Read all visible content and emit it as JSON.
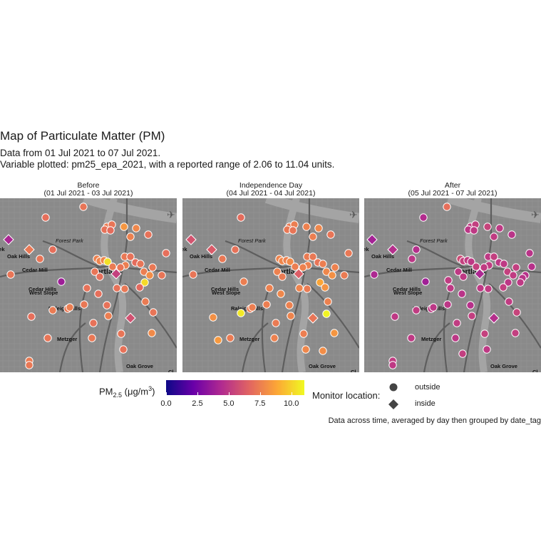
{
  "title": "Map of Particulate Matter (PM)",
  "subtitle_line1": "Data from 01 Jul 2021 to 07 Jul 2021.",
  "subtitle_line2": "Variable plotted: pm25_epa_2021, with a reported range of 2.06 to 11.04 units.",
  "caption": "Data across time, averaged by day then grouped by date_tag",
  "color_legend": {
    "title_main": "PM",
    "title_sub": "2.5",
    "title_unit_pre": " (μg/m",
    "title_unit_sup": "3",
    "title_unit_post": ")",
    "ticks": [
      "0.0",
      "2.5",
      "5.0",
      "7.5",
      "10.0"
    ],
    "tick_values": [
      0,
      2.5,
      5,
      7.5,
      10
    ],
    "range": [
      0,
      11.04
    ],
    "palette": [
      "#0d0887",
      "#6a00a8",
      "#b12a90",
      "#e16462",
      "#fca636",
      "#f0f921"
    ]
  },
  "shape_legend": {
    "title": "Monitor location:",
    "items": [
      {
        "label": "outside",
        "shape": "circle"
      },
      {
        "label": "inside",
        "shape": "diamond"
      }
    ]
  },
  "map_labels": [
    {
      "text": "Forest Park",
      "style": "italic"
    },
    {
      "text": "Oak Hills",
      "style": "bold"
    },
    {
      "text": "Cedar Mill",
      "style": "bold"
    },
    {
      "text": "Cedar Hills",
      "style": "bold"
    },
    {
      "text": "West Slope",
      "style": "bold"
    },
    {
      "text": "Raleigh Hills",
      "style": "bold"
    },
    {
      "text": "Metzger",
      "style": "bold"
    },
    {
      "text": "Portland",
      "style": "bold-large"
    },
    {
      "text": "Oak Grove",
      "style": "bold"
    },
    {
      "text": "eek",
      "style": "bold"
    },
    {
      "text": "Cl",
      "style": "bold"
    }
  ],
  "chart_data": {
    "type": "scatter",
    "facets": [
      {
        "label": "Before",
        "date_range": "(01 Jul 2021 - 03 Jul 2021)",
        "points": [
          [
            117,
            12,
            7.2,
            "o"
          ],
          [
            64,
            27,
            7.0,
            "o"
          ],
          [
            12,
            58,
            4.2,
            "d"
          ],
          [
            41,
            72,
            7.3,
            "d"
          ],
          [
            150,
            40,
            7.4,
            "o"
          ],
          [
            147,
            44,
            7.1,
            "o"
          ],
          [
            157,
            37,
            7.2,
            "o"
          ],
          [
            155,
            45,
            6.9,
            "o"
          ],
          [
            174,
            40,
            8.3,
            "o"
          ],
          [
            191,
            42,
            7.8,
            "o"
          ],
          [
            208,
            51,
            7.1,
            "o"
          ],
          [
            183,
            54,
            7.6,
            "o"
          ],
          [
            74,
            72,
            7.0,
            "o"
          ],
          [
            56,
            85,
            7.2,
            "o"
          ],
          [
            136,
            85,
            7.6,
            "o"
          ],
          [
            140,
            88,
            7.7,
            "o"
          ],
          [
            146,
            87,
            7.8,
            "o"
          ],
          [
            151,
            89,
            10.4,
            "o"
          ],
          [
            158,
            96,
            7.4,
            "o"
          ],
          [
            175,
            82,
            7.3,
            "o"
          ],
          [
            183,
            82,
            7.1,
            "o"
          ],
          [
            176,
            94,
            7.5,
            "o"
          ],
          [
            190,
            90,
            6.9,
            "o"
          ],
          [
            197,
            92,
            7.2,
            "o"
          ],
          [
            214,
            97,
            7.3,
            "o"
          ],
          [
            233,
            77,
            7.0,
            "o"
          ],
          [
            15,
            107,
            7.2,
            "o"
          ],
          [
            86,
            117,
            3.8,
            "o"
          ],
          [
            133,
            103,
            7.2,
            "o"
          ],
          [
            163,
            106,
            5.3,
            "d"
          ],
          [
            202,
            103,
            7.5,
            "o"
          ],
          [
            210,
            108,
            8.0,
            "o"
          ],
          [
            227,
            108,
            7.2,
            "o"
          ],
          [
            203,
            118,
            10.2,
            "o"
          ],
          [
            196,
            125,
            6.8,
            "o"
          ],
          [
            164,
            126,
            7.1,
            "o"
          ],
          [
            175,
            127,
            7.3,
            "o"
          ],
          [
            122,
            126,
            7.1,
            "o"
          ],
          [
            138,
            134,
            7.0,
            "o"
          ],
          [
            74,
            157,
            7.4,
            "o"
          ],
          [
            95,
            155,
            7.3,
            "o"
          ],
          [
            98,
            153,
            7.5,
            "o"
          ],
          [
            150,
            150,
            7.1,
            "o"
          ],
          [
            183,
            168,
            5.9,
            "d"
          ],
          [
            215,
            160,
            7.2,
            "o"
          ],
          [
            44,
            166,
            7.0,
            "o"
          ],
          [
            131,
            175,
            7.1,
            "o"
          ],
          [
            152,
            165,
            7.5,
            "o"
          ],
          [
            118,
            149,
            7.3,
            "o"
          ],
          [
            67,
            196,
            7.2,
            "o"
          ],
          [
            129,
            196,
            7.3,
            "o"
          ],
          [
            213,
            189,
            7.9,
            "o"
          ],
          [
            173,
            212,
            7.1,
            "o"
          ],
          [
            41,
            228,
            7.4,
            "o"
          ],
          [
            41,
            234,
            7.3,
            "o"
          ],
          [
            170,
            190,
            7.2,
            "o"
          ],
          [
            204,
            145,
            7.4,
            "o"
          ],
          [
            140,
            110,
            7.0,
            "o"
          ],
          [
            169,
            97,
            7.2,
            "o"
          ]
        ]
      },
      {
        "label": "Independence Day",
        "date_range": "(04 Jul 2021 - 04 Jul 2021)",
        "points": [
          [
            338,
            27,
            6.9,
            "o"
          ],
          [
            268,
            58,
            6.0,
            "d"
          ],
          [
            297,
            72,
            6.3,
            "d"
          ],
          [
            406,
            40,
            7.4,
            "o"
          ],
          [
            403,
            44,
            7.3,
            "o"
          ],
          [
            413,
            37,
            7.5,
            "o"
          ],
          [
            411,
            45,
            7.2,
            "o"
          ],
          [
            430,
            40,
            7.6,
            "o"
          ],
          [
            447,
            42,
            7.8,
            "o"
          ],
          [
            464,
            51,
            7.2,
            "o"
          ],
          [
            439,
            54,
            7.5,
            "o"
          ],
          [
            330,
            72,
            7.1,
            "o"
          ],
          [
            312,
            85,
            7.3,
            "o"
          ],
          [
            392,
            85,
            7.7,
            "o"
          ],
          [
            396,
            88,
            7.8,
            "o"
          ],
          [
            402,
            87,
            7.6,
            "o"
          ],
          [
            407,
            89,
            7.9,
            "o"
          ],
          [
            414,
            96,
            7.5,
            "o"
          ],
          [
            431,
            82,
            7.4,
            "o"
          ],
          [
            439,
            82,
            7.3,
            "o"
          ],
          [
            432,
            94,
            7.6,
            "o"
          ],
          [
            446,
            90,
            7.2,
            "o"
          ],
          [
            453,
            92,
            7.5,
            "o"
          ],
          [
            470,
            97,
            7.6,
            "o"
          ],
          [
            489,
            77,
            7.3,
            "o"
          ],
          [
            271,
            107,
            7.2,
            "o"
          ],
          [
            342,
            117,
            7.5,
            "o"
          ],
          [
            389,
            103,
            7.6,
            "o"
          ],
          [
            419,
            106,
            6.4,
            "d"
          ],
          [
            458,
            103,
            7.8,
            "o"
          ],
          [
            466,
            108,
            8.1,
            "o"
          ],
          [
            483,
            108,
            7.4,
            "o"
          ],
          [
            449,
            118,
            8.8,
            "o"
          ],
          [
            456,
            125,
            8.2,
            "o"
          ],
          [
            420,
            126,
            7.7,
            "o"
          ],
          [
            431,
            127,
            7.4,
            "o"
          ],
          [
            378,
            126,
            7.6,
            "o"
          ],
          [
            394,
            134,
            7.8,
            "o"
          ],
          [
            338,
            161,
            10.6,
            "o"
          ],
          [
            351,
            155,
            7.4,
            "o"
          ],
          [
            354,
            153,
            7.5,
            "o"
          ],
          [
            406,
            150,
            7.6,
            "o"
          ],
          [
            439,
            168,
            7.2,
            "d"
          ],
          [
            458,
            162,
            10.9,
            "o"
          ],
          [
            299,
            167,
            8.1,
            "o"
          ],
          [
            387,
            175,
            7.4,
            "o"
          ],
          [
            408,
            165,
            7.7,
            "o"
          ],
          [
            374,
            149,
            7.5,
            "o"
          ],
          [
            323,
            196,
            7.4,
            "o"
          ],
          [
            385,
            196,
            7.6,
            "o"
          ],
          [
            469,
            189,
            8.3,
            "o"
          ],
          [
            429,
            212,
            7.8,
            "o"
          ],
          [
            453,
            214,
            8.0,
            "o"
          ],
          [
            306,
            199,
            8.4,
            "o"
          ],
          [
            426,
            190,
            7.5,
            "o"
          ],
          [
            460,
            145,
            7.6,
            "o"
          ],
          [
            396,
            110,
            7.4,
            "o"
          ],
          [
            425,
            97,
            7.6,
            "o"
          ]
        ]
      },
      {
        "label": "After",
        "date_range": "(05 Jul 2021 - 07 Jul 2021)",
        "points": [
          [
            627,
            12,
            7.0,
            "o"
          ],
          [
            594,
            27,
            4.5,
            "o"
          ],
          [
            522,
            58,
            4.0,
            "d"
          ],
          [
            551,
            72,
            4.6,
            "d"
          ],
          [
            660,
            40,
            5.1,
            "o"
          ],
          [
            657,
            44,
            4.9,
            "o"
          ],
          [
            667,
            37,
            5.2,
            "o"
          ],
          [
            665,
            45,
            5.0,
            "o"
          ],
          [
            684,
            40,
            5.4,
            "o"
          ],
          [
            701,
            42,
            5.0,
            "o"
          ],
          [
            718,
            51,
            4.8,
            "o"
          ],
          [
            693,
            54,
            5.1,
            "o"
          ],
          [
            584,
            72,
            4.6,
            "o"
          ],
          [
            578,
            85,
            4.9,
            "o"
          ],
          [
            646,
            85,
            5.7,
            "o"
          ],
          [
            650,
            88,
            5.3,
            "o"
          ],
          [
            656,
            87,
            5.1,
            "o"
          ],
          [
            661,
            89,
            5.0,
            "o"
          ],
          [
            668,
            96,
            5.3,
            "o"
          ],
          [
            685,
            82,
            5.0,
            "o"
          ],
          [
            693,
            82,
            5.2,
            "o"
          ],
          [
            686,
            94,
            5.1,
            "o"
          ],
          [
            700,
            90,
            4.9,
            "o"
          ],
          [
            707,
            92,
            5.0,
            "o"
          ],
          [
            724,
            97,
            5.2,
            "o"
          ],
          [
            743,
            77,
            4.8,
            "o"
          ],
          [
            525,
            107,
            4.3,
            "o"
          ],
          [
            597,
            117,
            3.9,
            "o"
          ],
          [
            643,
            103,
            5.0,
            "o"
          ],
          [
            673,
            106,
            4.3,
            "d"
          ],
          [
            712,
            103,
            5.3,
            "o"
          ],
          [
            720,
            108,
            5.1,
            "o"
          ],
          [
            737,
            108,
            4.7,
            "o"
          ],
          [
            713,
            118,
            4.9,
            "o"
          ],
          [
            706,
            125,
            5.2,
            "o"
          ],
          [
            674,
            126,
            5.0,
            "o"
          ],
          [
            685,
            127,
            5.1,
            "o"
          ],
          [
            632,
            126,
            5.0,
            "o"
          ],
          [
            648,
            134,
            4.8,
            "o"
          ],
          [
            584,
            157,
            5.1,
            "o"
          ],
          [
            605,
            155,
            5.0,
            "o"
          ],
          [
            608,
            153,
            4.9,
            "o"
          ],
          [
            660,
            150,
            4.7,
            "o"
          ],
          [
            693,
            168,
            4.6,
            "d"
          ],
          [
            725,
            160,
            5.4,
            "o"
          ],
          [
            554,
            166,
            5.0,
            "o"
          ],
          [
            641,
            175,
            5.1,
            "o"
          ],
          [
            662,
            165,
            5.2,
            "o"
          ],
          [
            628,
            149,
            4.9,
            "o"
          ],
          [
            577,
            196,
            5.0,
            "o"
          ],
          [
            639,
            196,
            4.9,
            "o"
          ],
          [
            723,
            189,
            5.2,
            "o"
          ],
          [
            683,
            212,
            5.0,
            "o"
          ],
          [
            551,
            228,
            5.1,
            "o"
          ],
          [
            551,
            234,
            5.0,
            "o"
          ],
          [
            680,
            190,
            5.3,
            "o"
          ],
          [
            714,
            145,
            5.1,
            "o"
          ],
          [
            650,
            110,
            5.0,
            "o"
          ],
          [
            679,
            97,
            5.1,
            "o"
          ],
          [
            733,
            112,
            4.8,
            "o"
          ],
          [
            730,
            118,
            5.0,
            "o"
          ],
          [
            746,
            96,
            4.7,
            "o"
          ],
          [
            629,
            115,
            5.1,
            "o"
          ],
          [
            649,
            218,
            5.2,
            "o"
          ]
        ]
      }
    ]
  }
}
